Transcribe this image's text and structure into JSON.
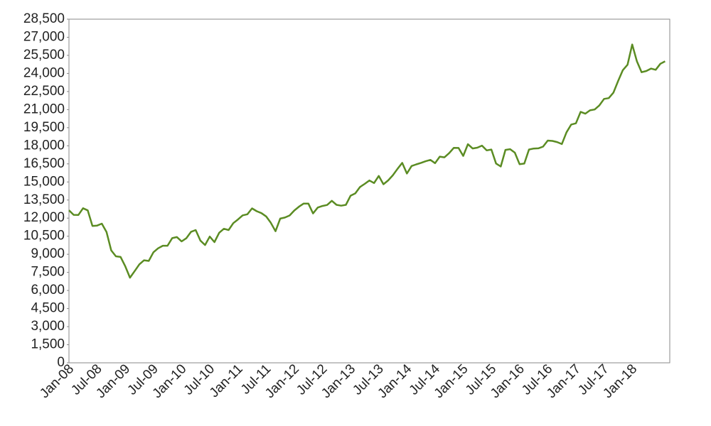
{
  "chart_data": {
    "type": "line",
    "x": [
      "Jan-08",
      "Feb-08",
      "Mar-08",
      "Apr-08",
      "May-08",
      "Jun-08",
      "Jul-08",
      "Aug-08",
      "Sep-08",
      "Oct-08",
      "Nov-08",
      "Dec-08",
      "Jan-09",
      "Feb-09",
      "Mar-09",
      "Apr-09",
      "May-09",
      "Jun-09",
      "Jul-09",
      "Aug-09",
      "Sep-09",
      "Oct-09",
      "Nov-09",
      "Dec-09",
      "Jan-10",
      "Feb-10",
      "Mar-10",
      "Apr-10",
      "May-10",
      "Jun-10",
      "Jul-10",
      "Aug-10",
      "Sep-10",
      "Oct-10",
      "Nov-10",
      "Dec-10",
      "Jan-11",
      "Feb-11",
      "Mar-11",
      "Apr-11",
      "May-11",
      "Jun-11",
      "Jul-11",
      "Aug-11",
      "Sep-11",
      "Oct-11",
      "Nov-11",
      "Dec-11",
      "Jan-12",
      "Feb-12",
      "Mar-12",
      "Apr-12",
      "May-12",
      "Jun-12",
      "Jul-12",
      "Aug-12",
      "Sep-12",
      "Oct-12",
      "Nov-12",
      "Dec-12",
      "Jan-13",
      "Feb-13",
      "Mar-13",
      "Apr-13",
      "May-13",
      "Jun-13",
      "Jul-13",
      "Aug-13",
      "Sep-13",
      "Oct-13",
      "Nov-13",
      "Dec-13",
      "Jan-14",
      "Feb-14",
      "Mar-14",
      "Apr-14",
      "May-14",
      "Jun-14",
      "Jul-14",
      "Aug-14",
      "Sep-14",
      "Oct-14",
      "Nov-14",
      "Dec-14",
      "Jan-15",
      "Feb-15",
      "Mar-15",
      "Apr-15",
      "May-15",
      "Jun-15",
      "Jul-15",
      "Aug-15",
      "Sep-15",
      "Oct-15",
      "Nov-15",
      "Dec-15",
      "Jan-16",
      "Feb-16",
      "Mar-16",
      "Apr-16",
      "May-16",
      "Jun-16",
      "Jul-16",
      "Aug-16",
      "Sep-16",
      "Oct-16",
      "Nov-16",
      "Dec-16",
      "Jan-17",
      "Feb-17",
      "Mar-17",
      "Apr-17",
      "May-17",
      "Jun-17",
      "Jul-17",
      "Aug-17",
      "Sep-17",
      "Oct-17",
      "Nov-17",
      "Dec-17",
      "Jan-18",
      "Feb-18",
      "Mar-18",
      "Apr-18",
      "May-18",
      "Jun-18",
      "Jul-18",
      "Aug-18"
    ],
    "values": [
      12650,
      12270,
      12260,
      12820,
      12640,
      11350,
      11380,
      11540,
      10850,
      9330,
      8830,
      8780,
      8000,
      7060,
      7610,
      8170,
      8500,
      8450,
      9170,
      9500,
      9710,
      9710,
      10340,
      10430,
      10070,
      10330,
      10860,
      11010,
      10140,
      9770,
      10470,
      10010,
      10790,
      11120,
      11010,
      11580,
      11890,
      12230,
      12320,
      12810,
      12570,
      12410,
      12140,
      11610,
      10910,
      11960,
      12050,
      12220,
      12630,
      12950,
      13210,
      13210,
      12390,
      12880,
      13010,
      13090,
      13440,
      13100,
      13030,
      13100,
      13860,
      14050,
      14580,
      14840,
      15120,
      14910,
      15500,
      14810,
      15130,
      15550,
      16090,
      16580,
      15700,
      16320,
      16460,
      16580,
      16720,
      16830,
      16560,
      17100,
      17040,
      17390,
      17830,
      17820,
      17160,
      18130,
      17780,
      17840,
      18010,
      17620,
      17690,
      16530,
      16280,
      17660,
      17720,
      17430,
      16470,
      16520,
      17690,
      17770,
      17790,
      17930,
      18430,
      18400,
      18310,
      18140,
      19120,
      19760,
      19860,
      20810,
      20660,
      20940,
      21010,
      21350,
      21890,
      21950,
      22410,
      23380,
      24270,
      24720,
      26400,
      25000,
      24100,
      24200,
      24400,
      24300,
      24800,
      25000
    ],
    "color": "#5b8c23",
    "xticks": [
      "Jan-08",
      "Jul-08",
      "Jan-09",
      "Jul-09",
      "Jan-10",
      "Jul-10",
      "Jan-11",
      "Jul-11",
      "Jan-12",
      "Jul-12",
      "Jan-13",
      "Jul-13",
      "Jan-14",
      "Jul-14",
      "Jan-15",
      "Jul-15",
      "Jan-16",
      "Jul-16",
      "Jan-17",
      "Jul-17",
      "Jan-18"
    ],
    "ylim": [
      0,
      28500
    ],
    "yticks": [
      0,
      {
        "value": 1500,
        "label": "1,500"
      },
      {
        "value": 3000,
        "label": "3,000"
      },
      {
        "value": 4500,
        "label": "4,500"
      },
      {
        "value": 6000,
        "label": "6,000"
      },
      {
        "value": 7500,
        "label": "7,500"
      },
      {
        "value": 9000,
        "label": "9,000"
      },
      {
        "value": 10500,
        "label": "10,500"
      },
      {
        "value": 12000,
        "label": "12,000"
      },
      {
        "value": 13500,
        "label": "13,500"
      },
      {
        "value": 15000,
        "label": "15,000"
      },
      {
        "value": 16500,
        "label": "16,500"
      },
      {
        "value": 18000,
        "label": "18,000"
      },
      {
        "value": 19500,
        "label": "19,500"
      },
      {
        "value": 21000,
        "label": "21,000"
      },
      {
        "value": 22500,
        "label": "22,500"
      },
      {
        "value": 24000,
        "label": "24,000"
      },
      {
        "value": 25500,
        "label": "25,500"
      },
      {
        "value": 27000,
        "label": "27,000"
      },
      {
        "value": 28500,
        "label": "28,500"
      }
    ]
  }
}
